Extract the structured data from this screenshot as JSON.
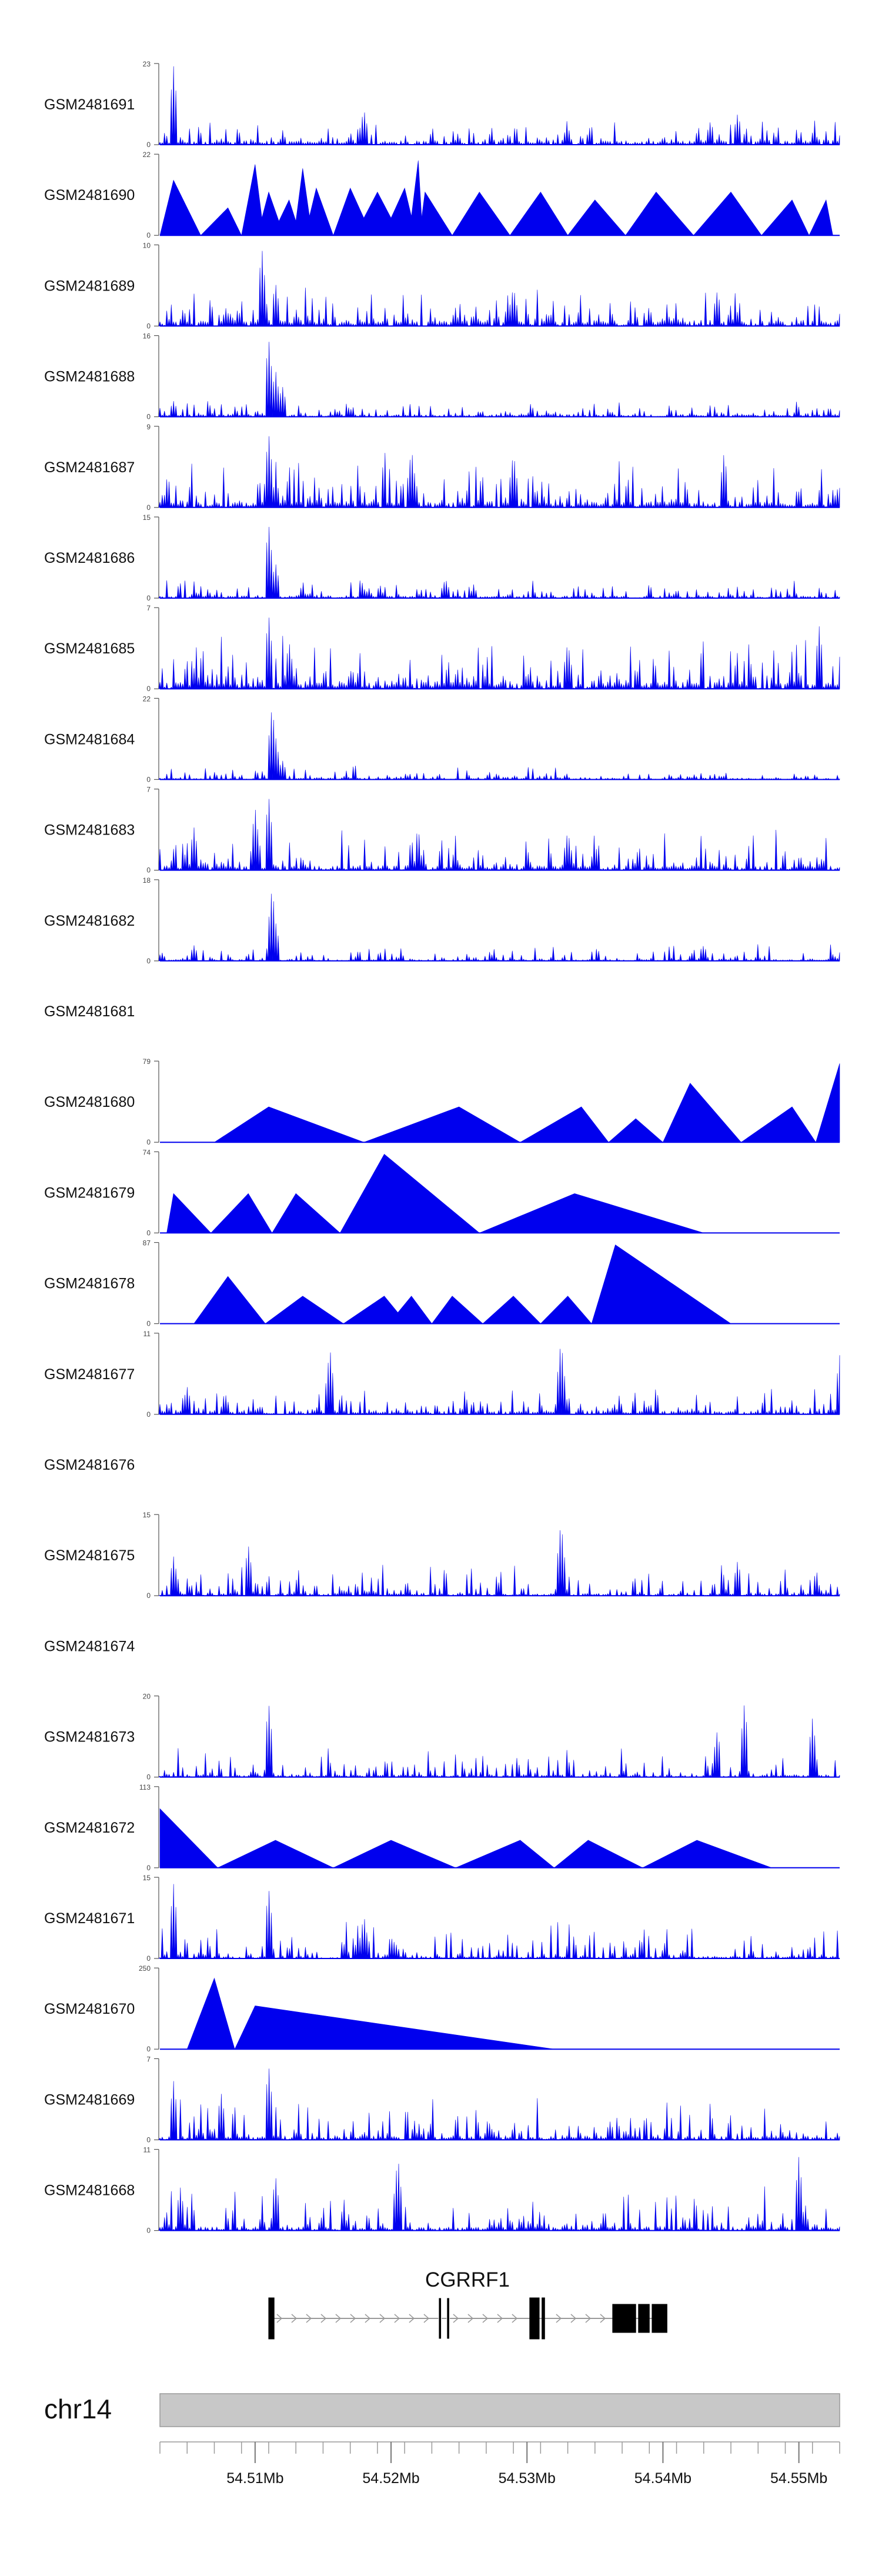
{
  "chart_data": {
    "type": "area",
    "title": "",
    "track_color": "#0000EE",
    "region": {
      "chrom": "chr14",
      "start": 54503000,
      "end": 54553000
    },
    "x_axis": {
      "label": "chr14",
      "ticks": [
        "54.51Mb",
        "54.52Mb",
        "54.53Mb",
        "54.54Mb",
        "54.55Mb"
      ],
      "tick_values": [
        54510000,
        54520000,
        54530000,
        54540000,
        54550000
      ]
    },
    "gene": {
      "name": "CGRRF1",
      "start": 54511000,
      "end": 54540300,
      "strand": "+",
      "exons": [
        [
          54511000,
          54511400
        ],
        [
          54523500,
          54523700
        ],
        [
          54524100,
          54524300
        ],
        [
          54530200,
          54530900
        ],
        [
          54531100,
          54531300
        ],
        [
          54536300,
          54538000
        ],
        [
          54538200,
          54539000
        ],
        [
          54539200,
          54540300
        ]
      ]
    },
    "tracks": [
      {
        "name": "GSM2481691",
        "ymax": 23,
        "shape": "dense",
        "baseline": 0.05,
        "variability": 0.35,
        "peaks": [
          [
            0.02,
            1.0
          ],
          [
            0.3,
            0.45
          ],
          [
            0.85,
            0.4
          ],
          [
            0.81,
            0.3
          ]
        ]
      },
      {
        "name": "GSM2481690",
        "ymax": 22,
        "shape": "triangles",
        "start": 0.0,
        "end": 0.99,
        "peaks": [
          [
            0.02,
            0.7
          ],
          [
            0.1,
            0.35
          ],
          [
            0.16,
            0.55
          ],
          [
            0.19,
            0.45
          ],
          [
            0.14,
            0.9
          ],
          [
            0.21,
            0.85
          ],
          [
            0.23,
            0.6
          ],
          [
            0.28,
            0.6
          ],
          [
            0.32,
            0.55
          ],
          [
            0.36,
            0.6
          ],
          [
            0.39,
            0.55
          ],
          [
            0.38,
            0.95
          ],
          [
            0.47,
            0.55
          ],
          [
            0.56,
            0.55
          ],
          [
            0.64,
            0.45
          ],
          [
            0.73,
            0.55
          ],
          [
            0.84,
            0.55
          ],
          [
            0.93,
            0.45
          ],
          [
            0.98,
            0.45
          ]
        ]
      },
      {
        "name": "GSM2481689",
        "ymax": 10,
        "shape": "dense",
        "baseline": 0.08,
        "variability": 0.55,
        "peaks": [
          [
            0.15,
            1.0
          ],
          [
            0.17,
            0.55
          ],
          [
            0.52,
            0.5
          ],
          [
            0.82,
            0.45
          ]
        ]
      },
      {
        "name": "GSM2481688",
        "ymax": 16,
        "shape": "dense",
        "baseline": 0.03,
        "variability": 0.25,
        "peaks": [
          [
            0.16,
            1.0
          ],
          [
            0.17,
            0.6
          ],
          [
            0.18,
            0.4
          ],
          [
            0.02,
            0.2
          ]
        ]
      },
      {
        "name": "GSM2481687",
        "ymax": 9,
        "shape": "dense",
        "baseline": 0.08,
        "variability": 0.75,
        "peaks": [
          [
            0.16,
            0.95
          ],
          [
            0.37,
            0.75
          ],
          [
            0.52,
            0.7
          ],
          [
            0.83,
            0.7
          ]
        ]
      },
      {
        "name": "GSM2481686",
        "ymax": 15,
        "shape": "dense",
        "baseline": 0.03,
        "variability": 0.25,
        "peaks": [
          [
            0.16,
            0.95
          ],
          [
            0.17,
            0.45
          ],
          [
            0.42,
            0.25
          ]
        ]
      },
      {
        "name": "GSM2481685",
        "ymax": 7,
        "shape": "dense",
        "baseline": 0.1,
        "variability": 0.7,
        "peaks": [
          [
            0.16,
            0.95
          ],
          [
            0.19,
            0.6
          ],
          [
            0.97,
            0.8
          ],
          [
            0.6,
            0.6
          ]
        ]
      },
      {
        "name": "GSM2481684",
        "ymax": 22,
        "shape": "dense",
        "baseline": 0.02,
        "variability": 0.18,
        "peaks": [
          [
            0.165,
            0.95
          ],
          [
            0.17,
            0.55
          ],
          [
            0.18,
            0.25
          ]
        ]
      },
      {
        "name": "GSM2481683",
        "ymax": 7,
        "shape": "dense",
        "baseline": 0.06,
        "variability": 0.6,
        "peaks": [
          [
            0.16,
            0.95
          ],
          [
            0.14,
            0.8
          ],
          [
            0.05,
            0.55
          ],
          [
            0.6,
            0.5
          ]
        ]
      },
      {
        "name": "GSM2481682",
        "ymax": 18,
        "shape": "dense",
        "baseline": 0.02,
        "variability": 0.22,
        "peaks": [
          [
            0.165,
            0.95
          ],
          [
            0.17,
            0.5
          ],
          [
            0.05,
            0.2
          ],
          [
            0.8,
            0.2
          ]
        ]
      },
      {
        "name": "GSM2481681",
        "ymax": null,
        "shape": "empty"
      },
      {
        "name": "GSM2481680",
        "ymax": 79,
        "shape": "triangles",
        "start": 0.08,
        "end": 1.0,
        "peaks": [
          [
            0.16,
            0.45
          ],
          [
            0.44,
            0.45
          ],
          [
            0.62,
            0.45
          ],
          [
            0.7,
            0.3
          ],
          [
            0.78,
            0.75
          ],
          [
            1.0,
            1.0
          ],
          [
            0.93,
            0.45
          ]
        ]
      },
      {
        "name": "GSM2481679",
        "ymax": 74,
        "shape": "triangles",
        "start": 0.01,
        "end": 0.8,
        "peaks": [
          [
            0.02,
            0.5
          ],
          [
            0.13,
            0.5
          ],
          [
            0.2,
            0.5
          ],
          [
            0.33,
            1.0
          ],
          [
            0.61,
            0.5
          ]
        ]
      },
      {
        "name": "GSM2481678",
        "ymax": 87,
        "shape": "triangles",
        "start": 0.05,
        "end": 0.84,
        "peaks": [
          [
            0.1,
            0.6
          ],
          [
            0.21,
            0.35
          ],
          [
            0.33,
            0.35
          ],
          [
            0.37,
            0.35
          ],
          [
            0.43,
            0.35
          ],
          [
            0.52,
            0.35
          ],
          [
            0.6,
            0.35
          ],
          [
            0.67,
            1.0
          ]
        ]
      },
      {
        "name": "GSM2481677",
        "ymax": 11,
        "shape": "dense",
        "baseline": 0.05,
        "variability": 0.35,
        "peaks": [
          [
            0.25,
            0.85
          ],
          [
            0.59,
            0.95
          ],
          [
            1.0,
            0.75
          ],
          [
            0.04,
            0.35
          ]
        ]
      },
      {
        "name": "GSM2481676",
        "ymax": null,
        "shape": "empty"
      },
      {
        "name": "GSM2481675",
        "ymax": 15,
        "shape": "dense",
        "baseline": 0.03,
        "variability": 0.4,
        "peaks": [
          [
            0.59,
            0.95
          ],
          [
            0.13,
            0.65
          ],
          [
            0.02,
            0.5
          ],
          [
            0.85,
            0.45
          ]
        ]
      },
      {
        "name": "GSM2481674",
        "ymax": null,
        "shape": "empty"
      },
      {
        "name": "GSM2481673",
        "ymax": 20,
        "shape": "dense",
        "baseline": 0.03,
        "variability": 0.4,
        "peaks": [
          [
            0.16,
            0.95
          ],
          [
            0.86,
            0.95
          ],
          [
            0.96,
            0.75
          ],
          [
            0.82,
            0.6
          ]
        ]
      },
      {
        "name": "GSM2481672",
        "ymax": 113,
        "shape": "triangles",
        "start": 0.0,
        "end": 0.9,
        "peaks": [
          [
            0.0,
            0.75
          ],
          [
            0.17,
            0.35
          ],
          [
            0.34,
            0.35
          ],
          [
            0.53,
            0.35
          ],
          [
            0.63,
            0.35
          ],
          [
            0.79,
            0.35
          ]
        ]
      },
      {
        "name": "GSM2481671",
        "ymax": 15,
        "shape": "dense",
        "baseline": 0.03,
        "variability": 0.5,
        "peaks": [
          [
            0.02,
            0.95
          ],
          [
            0.16,
            0.9
          ],
          [
            0.3,
            0.55
          ]
        ]
      },
      {
        "name": "GSM2481670",
        "ymax": 250,
        "shape": "triangles",
        "start": 0.04,
        "end": 0.58,
        "peaks": [
          [
            0.08,
            0.9
          ],
          [
            0.14,
            0.55
          ]
        ]
      },
      {
        "name": "GSM2481669",
        "ymax": 7,
        "shape": "dense",
        "baseline": 0.05,
        "variability": 0.55,
        "peaks": [
          [
            0.16,
            0.95
          ],
          [
            0.02,
            0.75
          ],
          [
            0.09,
            0.6
          ]
        ]
      },
      {
        "name": "GSM2481668",
        "ymax": 11,
        "shape": "dense",
        "baseline": 0.05,
        "variability": 0.55,
        "peaks": [
          [
            0.35,
            0.95
          ],
          [
            0.94,
            0.95
          ],
          [
            0.17,
            0.7
          ],
          [
            0.03,
            0.55
          ]
        ]
      }
    ]
  }
}
